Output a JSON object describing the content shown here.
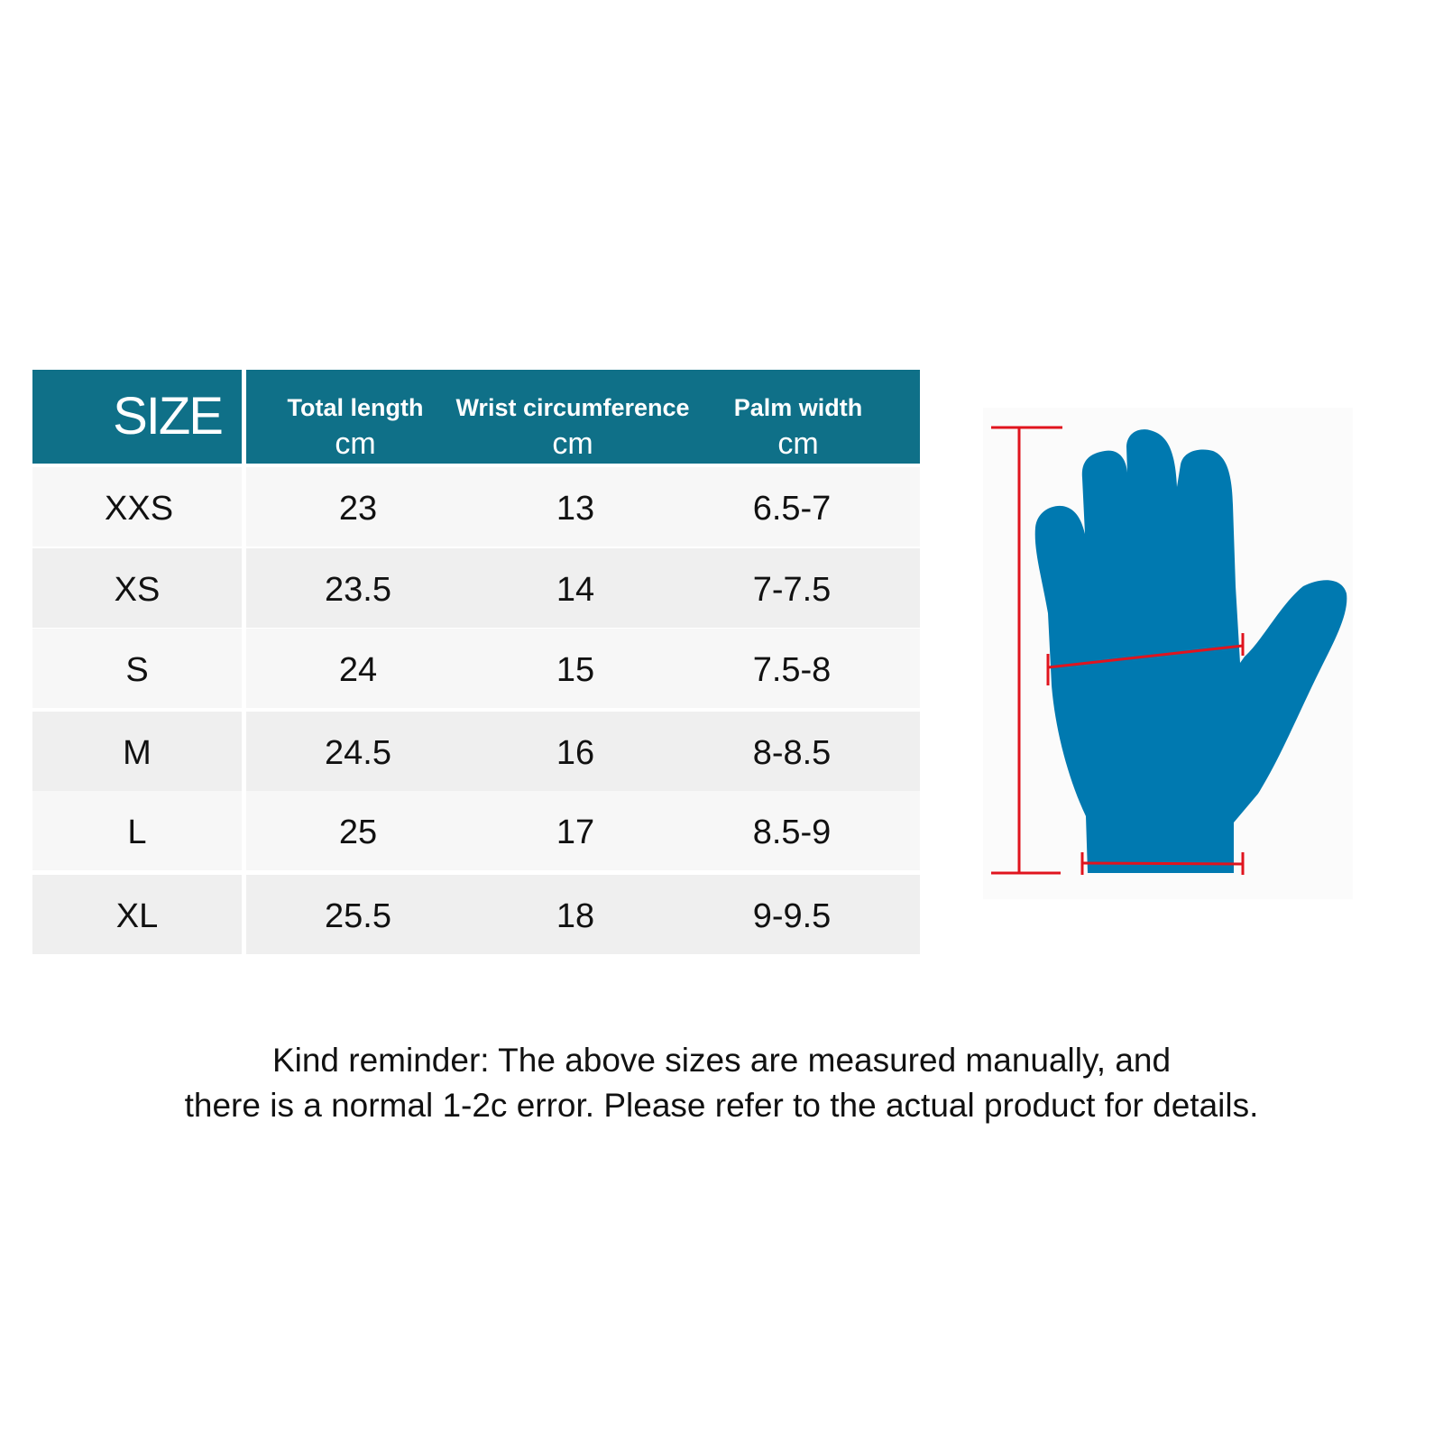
{
  "table": {
    "size_header": "SIZE",
    "columns": [
      {
        "label": "Total length",
        "unit": "cm"
      },
      {
        "label": "Wrist circumference",
        "unit": "cm"
      },
      {
        "label": "Palm width",
        "unit": "cm"
      }
    ],
    "rows": [
      {
        "size": "XXS",
        "total_length": "23",
        "wrist": "13",
        "palm": "6.5-7"
      },
      {
        "size": "XS",
        "total_length": "23.5",
        "wrist": "14",
        "palm": "7-7.5"
      },
      {
        "size": "S",
        "total_length": "24",
        "wrist": "15",
        "palm": "7.5-8"
      },
      {
        "size": "M",
        "total_length": "24.5",
        "wrist": "16",
        "palm": "8-8.5"
      },
      {
        "size": "L",
        "total_length": "25",
        "wrist": "17",
        "palm": "8.5-9"
      },
      {
        "size": "XL",
        "total_length": "25.5",
        "wrist": "18",
        "palm": "9-9.5"
      }
    ]
  },
  "note": {
    "line1": "Kind reminder: The above sizes are measured manually, and",
    "line2": "there is a normal 1-2c error. Please refer to the actual product for details."
  },
  "colors": {
    "header": "#0f7088",
    "glove": "#0079b0",
    "measure": "#e0141e",
    "row_light": "#f7f7f7",
    "row_dark": "#efefef"
  }
}
